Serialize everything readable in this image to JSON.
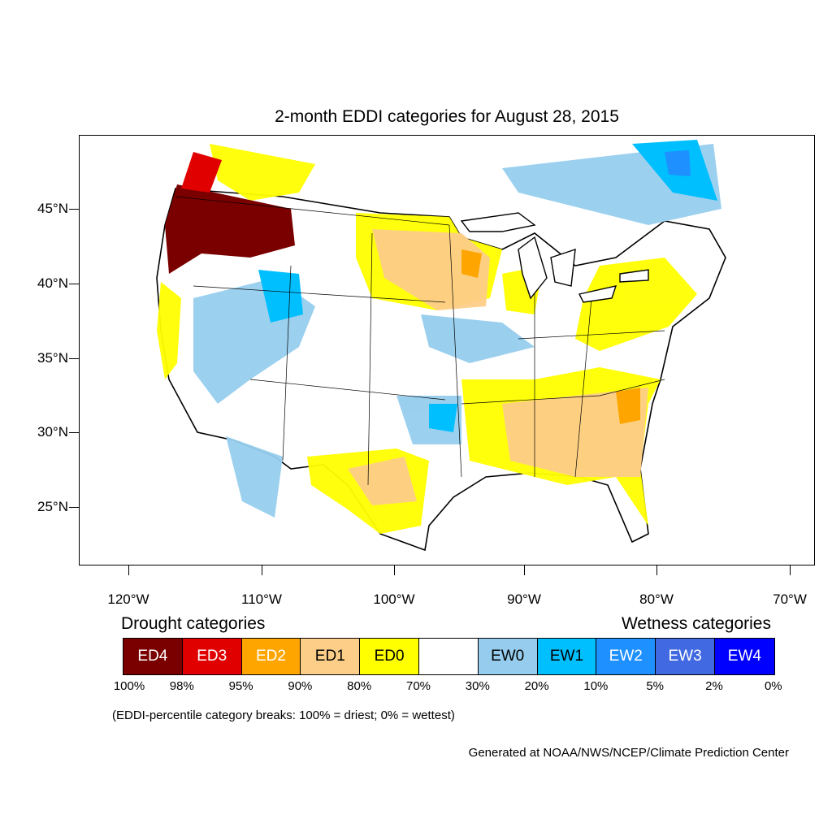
{
  "title": "2-month EDDI categories for August 28, 2015",
  "lat_labels": [
    "45°N",
    "40°N",
    "35°N",
    "30°N",
    "25°N"
  ],
  "lon_labels": [
    "120°W",
    "110°W",
    "100°W",
    "90°W",
    "80°W",
    "70°W"
  ],
  "legend": {
    "drought_heading": "Drought categories",
    "wetness_heading": "Wetness categories",
    "categories": [
      {
        "label": "ED4",
        "color": "#7a0000",
        "text_color": "#ffffff"
      },
      {
        "label": "ED3",
        "color": "#e00000",
        "text_color": "#ffffff"
      },
      {
        "label": "ED2",
        "color": "#ffa500",
        "text_color": "#ffffff"
      },
      {
        "label": "ED1",
        "color": "#fdce88",
        "text_color": "#000000"
      },
      {
        "label": "ED0",
        "color": "#ffff00",
        "text_color": "#000000"
      },
      {
        "label": "",
        "color": "#ffffff",
        "text_color": "#000000"
      },
      {
        "label": "EW0",
        "color": "#96cdee",
        "text_color": "#000000"
      },
      {
        "label": "EW1",
        "color": "#00bfff",
        "text_color": "#000000"
      },
      {
        "label": "EW2",
        "color": "#1e90ff",
        "text_color": "#ffffff"
      },
      {
        "label": "EW3",
        "color": "#4169e1",
        "text_color": "#ffffff"
      },
      {
        "label": "EW4",
        "color": "#0000ff",
        "text_color": "#ffffff"
      }
    ],
    "breaks": [
      "100%",
      "98%",
      "95%",
      "90%",
      "80%",
      "70%",
      "30%",
      "20%",
      "10%",
      "5%",
      "2%",
      "0%"
    ]
  },
  "note": "(EDDI-percentile category breaks: 100% = driest; 0% = wettest)",
  "credit": "Generated at NOAA/NWS/NCEP/Climate Prediction Center"
}
